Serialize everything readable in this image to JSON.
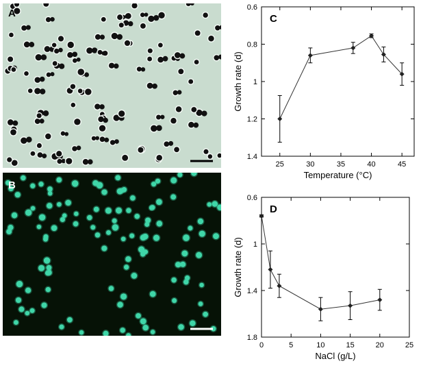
{
  "figure": {
    "panel_a": {
      "label": "A",
      "background": "#c9dccf",
      "cell_color": "#111111"
    },
    "panel_b": {
      "label": "B",
      "background": "#061206",
      "cell_color": "#3fd6a8"
    }
  },
  "chart_data": [
    {
      "id": "C",
      "type": "line",
      "label": "C",
      "xlabel": "Temperature (°C)",
      "ylabel": "Growth rate (d)",
      "xlim": [
        22,
        47
      ],
      "ylim": [
        0.6,
        1.4
      ],
      "y_inverted": true,
      "xticks": [
        25,
        30,
        35,
        40,
        45
      ],
      "yticks": [
        0.6,
        0.8,
        1,
        1.2,
        1.4
      ],
      "ytick_labels": [
        "0.6",
        "0.8",
        "1",
        "1.2",
        "1.4"
      ],
      "series": [
        {
          "x": [
            25,
            30,
            37,
            40,
            42,
            45
          ],
          "y": [
            1.2,
            0.86,
            0.82,
            0.755,
            0.855,
            0.96
          ],
          "err": [
            0.125,
            0.04,
            0.03,
            0.01,
            0.04,
            0.06
          ]
        }
      ],
      "grid": false,
      "color": "#333333"
    },
    {
      "id": "D",
      "type": "line",
      "label": "D",
      "xlabel": "NaCl (g/L)",
      "ylabel": "Growth rate (d)",
      "xlim": [
        0,
        25
      ],
      "ylim": [
        0.6,
        1.8
      ],
      "y_inverted": true,
      "xticks": [
        0,
        5,
        10,
        15,
        20,
        25
      ],
      "yticks": [
        0.6,
        1,
        1.4,
        1.8
      ],
      "ytick_labels": [
        "0.6",
        "1",
        "1.4",
        "1.8"
      ],
      "series": [
        {
          "x": [
            0,
            1.5,
            3,
            10,
            15,
            20
          ],
          "y": [
            0.76,
            1.22,
            1.36,
            1.56,
            1.53,
            1.48
          ],
          "err": [
            0.01,
            0.16,
            0.1,
            0.1,
            0.12,
            0.09
          ]
        }
      ],
      "grid": false,
      "color": "#333333"
    }
  ]
}
